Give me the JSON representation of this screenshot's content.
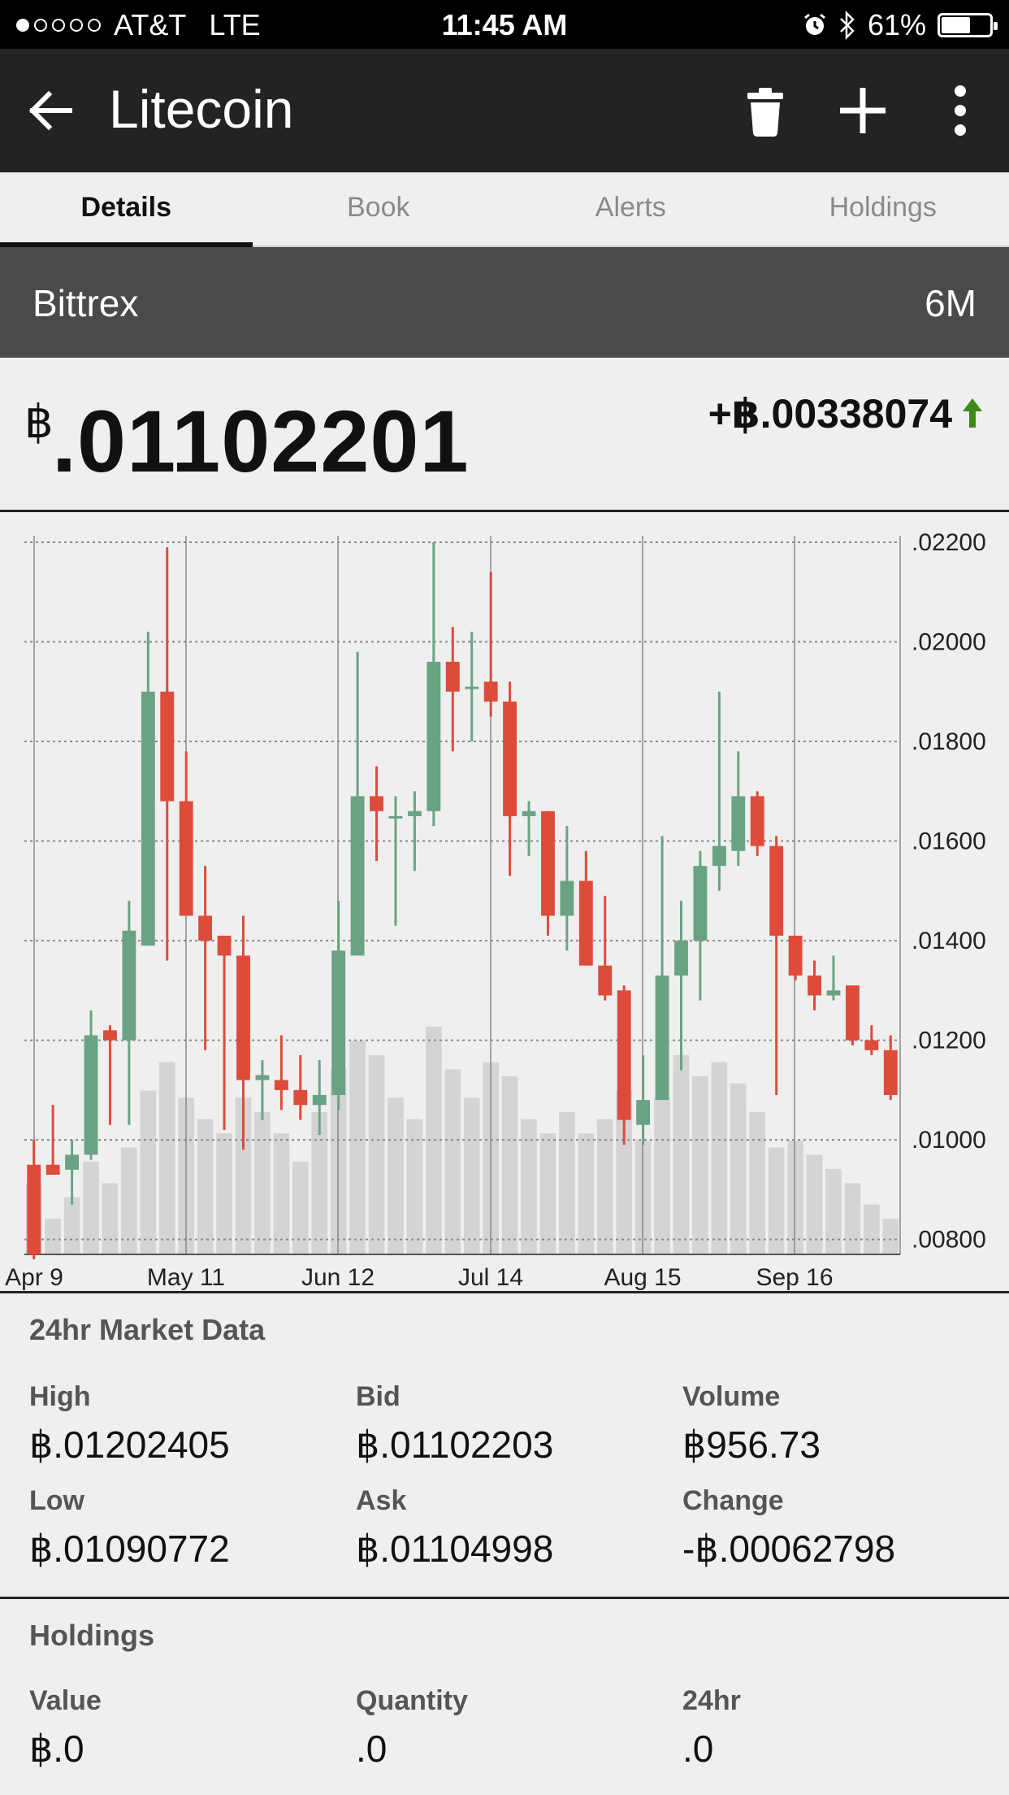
{
  "status_bar": {
    "signal_dots": [
      true,
      false,
      false,
      false,
      false
    ],
    "carrier": "AT&T",
    "network": "LTE",
    "time": "11:45 AM",
    "battery": "61%",
    "battery_level": 0.61
  },
  "header": {
    "title": "Litecoin",
    "icons": [
      "back-arrow-icon",
      "trash-icon",
      "plus-icon",
      "more-vert-icon"
    ]
  },
  "tabs": [
    {
      "label": "Details",
      "active": true
    },
    {
      "label": "Book",
      "active": false
    },
    {
      "label": "Alerts",
      "active": false
    },
    {
      "label": "Holdings",
      "active": false
    }
  ],
  "exchange_bar": {
    "exchange": "Bittrex",
    "range": "6M"
  },
  "price": {
    "currency_symbol": "฿",
    "value": ".01102201",
    "change": "+฿.00338074",
    "change_direction": "up",
    "up_color": "#3c8a1c"
  },
  "colors": {
    "up": "#6aa384",
    "down": "#de4b3b",
    "volume": "#d4d4d4",
    "grid": "#8a8a8a"
  },
  "chart_data": {
    "type": "candlestick",
    "x_labels": [
      "Apr 9",
      "May 11",
      "Jun 12",
      "Jul 14",
      "Aug 15",
      "Sep 16"
    ],
    "y_ticks": [
      ".02200",
      ".02000",
      ".01800",
      ".01600",
      ".01400",
      ".01200",
      ".01000",
      ".00800"
    ],
    "ylim": [
      0.0077,
      0.022
    ],
    "grid": true,
    "candles": [
      {
        "o": 0.0095,
        "h": 0.01,
        "l": 0.0076,
        "c": 0.0077,
        "v": 0.1
      },
      {
        "o": 0.0095,
        "h": 0.0107,
        "l": 0.0093,
        "c": 0.0093,
        "v": 0.05
      },
      {
        "o": 0.0094,
        "h": 0.01,
        "l": 0.0087,
        "c": 0.0097,
        "v": 0.08
      },
      {
        "o": 0.0097,
        "h": 0.0126,
        "l": 0.0096,
        "c": 0.0121,
        "v": 0.13
      },
      {
        "o": 0.0122,
        "h": 0.0123,
        "l": 0.0103,
        "c": 0.012,
        "v": 0.1
      },
      {
        "o": 0.012,
        "h": 0.0148,
        "l": 0.0103,
        "c": 0.0142,
        "v": 0.15
      },
      {
        "o": 0.0139,
        "h": 0.0202,
        "l": 0.0139,
        "c": 0.019,
        "v": 0.23
      },
      {
        "o": 0.019,
        "h": 0.0219,
        "l": 0.0136,
        "c": 0.0168,
        "v": 0.27
      },
      {
        "o": 0.0168,
        "h": 0.0178,
        "l": 0.0146,
        "c": 0.0145,
        "v": 0.22
      },
      {
        "o": 0.0145,
        "h": 0.0155,
        "l": 0.0118,
        "c": 0.014,
        "v": 0.19
      },
      {
        "o": 0.0141,
        "h": 0.0141,
        "l": 0.0102,
        "c": 0.0137,
        "v": 0.17
      },
      {
        "o": 0.0137,
        "h": 0.0145,
        "l": 0.0098,
        "c": 0.0112,
        "v": 0.22
      },
      {
        "o": 0.0112,
        "h": 0.0116,
        "l": 0.0104,
        "c": 0.0113,
        "v": 0.2
      },
      {
        "o": 0.0112,
        "h": 0.0121,
        "l": 0.0106,
        "c": 0.011,
        "v": 0.17
      },
      {
        "o": 0.011,
        "h": 0.0117,
        "l": 0.0104,
        "c": 0.0107,
        "v": 0.13
      },
      {
        "o": 0.0107,
        "h": 0.0116,
        "l": 0.0101,
        "c": 0.0109,
        "v": 0.2
      },
      {
        "o": 0.0109,
        "h": 0.0148,
        "l": 0.0106,
        "c": 0.0138,
        "v": 0.26
      },
      {
        "o": 0.0137,
        "h": 0.0198,
        "l": 0.0137,
        "c": 0.0169,
        "v": 0.3
      },
      {
        "o": 0.0169,
        "h": 0.0175,
        "l": 0.0156,
        "c": 0.0166,
        "v": 0.28
      },
      {
        "o": 0.0165,
        "h": 0.0169,
        "l": 0.0143,
        "c": 0.0165,
        "v": 0.22
      },
      {
        "o": 0.0165,
        "h": 0.017,
        "l": 0.0154,
        "c": 0.0166,
        "v": 0.19
      },
      {
        "o": 0.0166,
        "h": 0.022,
        "l": 0.0163,
        "c": 0.0196,
        "v": 0.32
      },
      {
        "o": 0.0196,
        "h": 0.0203,
        "l": 0.0178,
        "c": 0.019,
        "v": 0.26
      },
      {
        "o": 0.0191,
        "h": 0.0202,
        "l": 0.018,
        "c": 0.0191,
        "v": 0.22
      },
      {
        "o": 0.0192,
        "h": 0.0214,
        "l": 0.0185,
        "c": 0.0188,
        "v": 0.27
      },
      {
        "o": 0.0188,
        "h": 0.0192,
        "l": 0.0153,
        "c": 0.0165,
        "v": 0.25
      },
      {
        "o": 0.0165,
        "h": 0.0168,
        "l": 0.0157,
        "c": 0.0166,
        "v": 0.19
      },
      {
        "o": 0.0166,
        "h": 0.0166,
        "l": 0.0141,
        "c": 0.0145,
        "v": 0.17
      },
      {
        "o": 0.0145,
        "h": 0.0163,
        "l": 0.0138,
        "c": 0.0152,
        "v": 0.2
      },
      {
        "o": 0.0152,
        "h": 0.0158,
        "l": 0.0135,
        "c": 0.0135,
        "v": 0.17
      },
      {
        "o": 0.0135,
        "h": 0.0149,
        "l": 0.0128,
        "c": 0.0129,
        "v": 0.19
      },
      {
        "o": 0.013,
        "h": 0.0131,
        "l": 0.0099,
        "c": 0.0104,
        "v": 0.23
      },
      {
        "o": 0.0103,
        "h": 0.0117,
        "l": 0.0099,
        "c": 0.0108,
        "v": 0.16
      },
      {
        "o": 0.0108,
        "h": 0.0161,
        "l": 0.0108,
        "c": 0.0133,
        "v": 0.22
      },
      {
        "o": 0.0133,
        "h": 0.0148,
        "l": 0.0114,
        "c": 0.014,
        "v": 0.28
      },
      {
        "o": 0.014,
        "h": 0.0158,
        "l": 0.0128,
        "c": 0.0155,
        "v": 0.25
      },
      {
        "o": 0.0155,
        "h": 0.019,
        "l": 0.015,
        "c": 0.0159,
        "v": 0.27
      },
      {
        "o": 0.0158,
        "h": 0.0178,
        "l": 0.0155,
        "c": 0.0169,
        "v": 0.24
      },
      {
        "o": 0.0169,
        "h": 0.017,
        "l": 0.0157,
        "c": 0.0159,
        "v": 0.2
      },
      {
        "o": 0.0159,
        "h": 0.0161,
        "l": 0.0109,
        "c": 0.0141,
        "v": 0.15
      },
      {
        "o": 0.0141,
        "h": 0.0141,
        "l": 0.0132,
        "c": 0.0133,
        "v": 0.16
      },
      {
        "o": 0.0133,
        "h": 0.0136,
        "l": 0.0126,
        "c": 0.0129,
        "v": 0.14
      },
      {
        "o": 0.0129,
        "h": 0.0137,
        "l": 0.0128,
        "c": 0.013,
        "v": 0.12
      },
      {
        "o": 0.0131,
        "h": 0.0131,
        "l": 0.0119,
        "c": 0.012,
        "v": 0.1
      },
      {
        "o": 0.012,
        "h": 0.0123,
        "l": 0.0117,
        "c": 0.0118,
        "v": 0.07
      },
      {
        "o": 0.0118,
        "h": 0.0121,
        "l": 0.0108,
        "c": 0.0109,
        "v": 0.05
      }
    ]
  },
  "market_data": {
    "title": "24hr Market Data",
    "items": [
      {
        "label": "High",
        "value": "฿.01202405"
      },
      {
        "label": "Bid",
        "value": "฿.01102203"
      },
      {
        "label": "Volume",
        "value": "฿956.73"
      },
      {
        "label": "Low",
        "value": "฿.01090772"
      },
      {
        "label": "Ask",
        "value": "฿.01104998"
      },
      {
        "label": "Change",
        "value": "-฿.00062798"
      }
    ]
  },
  "holdings": {
    "title": "Holdings",
    "items": [
      {
        "label": "Value",
        "value": "฿.0"
      },
      {
        "label": "Quantity",
        "value": ".0"
      },
      {
        "label": "24hr",
        "value": ".0"
      }
    ]
  }
}
